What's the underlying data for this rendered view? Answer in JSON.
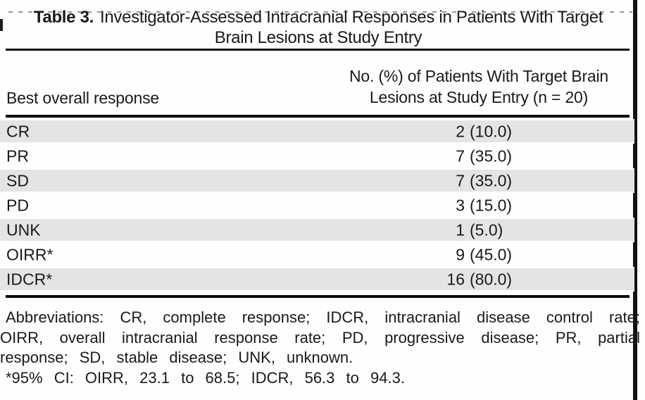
{
  "table": {
    "title_prefix": "Table 3.",
    "title_line1_rest": "Investigator-Assessed Intracranial Responses in Patients With Target",
    "title_line2": "Brain Lesions at Study Entry",
    "header": {
      "col1": "Best overall response",
      "col2_line1": "No. (%) of Patients With Target Brain",
      "col2_line2": "Lesions at Study Entry (n = 20)"
    },
    "rows": [
      {
        "label": "CR",
        "count": "2",
        "pct": "(10.0)"
      },
      {
        "label": "PR",
        "count": "7",
        "pct": "(35.0)"
      },
      {
        "label": "SD",
        "count": "7",
        "pct": "(35.0)"
      },
      {
        "label": "PD",
        "count": "3",
        "pct": "(15.0)"
      },
      {
        "label": "UNK",
        "count": "1",
        "pct": "(5.0)"
      },
      {
        "label": "OIRR*",
        "count": "9",
        "pct": "(45.0)"
      },
      {
        "label": "IDCR*",
        "count": "16",
        "pct": "(80.0)"
      }
    ],
    "footnotes": {
      "abbreviations": "Abbreviations: CR, complete response; IDCR, intracranial disease control rate; OIRR, overall intracranial response rate; PD, progressive disease; PR, partial response; SD, stable disease; UNK, unknown.",
      "ci_note": "*95% CI: OIRR, 23.1 to 68.5; IDCR, 56.3 to 94.3."
    }
  },
  "colors": {
    "row_shade": "#e4e4e4",
    "rule": "#0c0c0c",
    "text": "#1a1a1a",
    "background": "#fefefe"
  }
}
